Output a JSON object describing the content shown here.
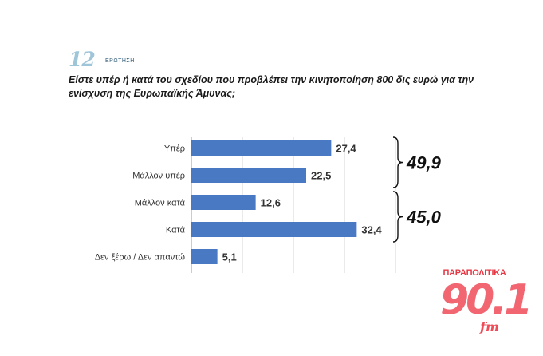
{
  "header": {
    "question_number": "12",
    "question_word": "ΕΡΩΤΗΣΗ",
    "question_text": "Είστε υπέρ ή κατά του σχεδίου που προβλέπει την κινητοποίηση 800 δις ευρώ για την ενίσχυση της Ευρωπαϊκής  Άμυνας;"
  },
  "chart_data": {
    "type": "bar",
    "orientation": "horizontal",
    "categories": [
      "Υπέρ",
      "Μάλλον υπέρ",
      "Μάλλον κατά",
      "Κατά",
      "Δεν ξέρω / Δεν απαντώ"
    ],
    "values": [
      27.4,
      22.5,
      12.6,
      32.4,
      5.1
    ],
    "value_labels": [
      "27,4",
      "22,5",
      "12,6",
      "32,4",
      "5,1"
    ],
    "xlim": [
      0,
      40
    ],
    "grid": true,
    "bar_color": "#4a79c4",
    "annotations": [
      {
        "text": "49,9",
        "groups": [
          0,
          1
        ]
      },
      {
        "text": "45,0",
        "groups": [
          2,
          3
        ]
      }
    ]
  },
  "logo": {
    "top_text": "ΠΑΡΑΠΟΛΙΤΙΚΑ",
    "big_text": "90.1",
    "fm_text": "fm"
  }
}
